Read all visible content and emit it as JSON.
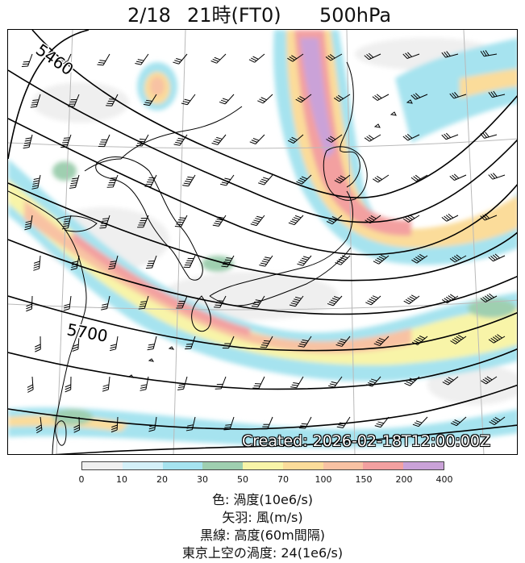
{
  "header": {
    "date": "2/18",
    "time": "21時(FT0)",
    "level": "500hPa"
  },
  "map": {
    "contour_labels": [
      "5460",
      "5700"
    ],
    "created": "Created: 2026-02-18T12:00:00Z"
  },
  "colorbar": {
    "ticks": [
      "0",
      "10",
      "20",
      "30",
      "50",
      "70",
      "100",
      "150",
      "200",
      "400"
    ],
    "colors": [
      "#efefef",
      "#d4f0f8",
      "#a6e3ef",
      "#9fcfb0",
      "#f8f4a8",
      "#fbdc9a",
      "#f8c2a3",
      "#f3a0a0",
      "#caa2d8"
    ]
  },
  "legend": {
    "line1": "色: 渦度(10e6/s)",
    "line2": "矢羽: 風(m/s)",
    "line3": "黒線: 高度(60m間隔)",
    "line4": "東京上空の渦度: 24(1e6/s)"
  }
}
